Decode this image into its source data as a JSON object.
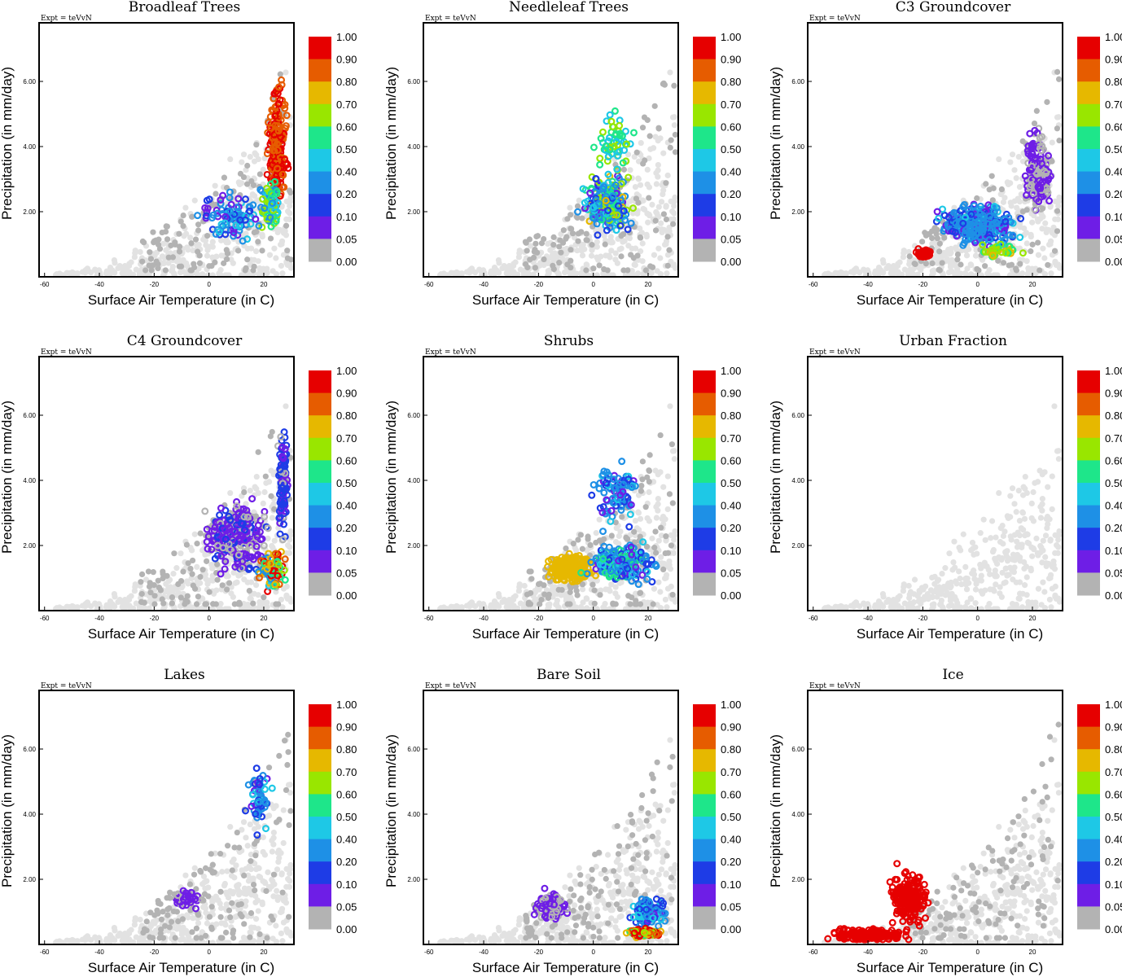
{
  "colors": {
    "background_points": "#e2e2e2",
    "zero_points": "#b3b3b3",
    "frame": "#000000"
  },
  "colorbar": {
    "labels": [
      "1.00",
      "0.90",
      "0.80",
      "0.70",
      "0.60",
      "0.50",
      "0.40",
      "0.20",
      "0.10",
      "0.05",
      "0.00"
    ],
    "colors": [
      "#e60000",
      "#e65c00",
      "#e6b800",
      "#99e600",
      "#1ee68a",
      "#1ec8e6",
      "#1e90e6",
      "#1e3ce6",
      "#6e1ee6",
      "#b3b3b3"
    ]
  },
  "chart_data": [
    {
      "type": "scatter",
      "title": "Broadleaf Trees",
      "annotation": "Expt = teVvN",
      "xlabel": "Surface Air Temperature (in C)",
      "ylabel": "Precipitation (in mm/day)",
      "xticks": [
        "-60",
        "-40",
        "-20",
        "0",
        "20"
      ],
      "yticks": [
        "2.00",
        "4.00",
        "6.00"
      ],
      "xlim": [
        -62,
        31
      ],
      "ylim": [
        0,
        7.8
      ],
      "color_scale": "fraction 0.00-1.00",
      "series": [
        {
          "center": [
            8,
            1.8
          ],
          "spread": [
            16,
            1.0
          ],
          "count": 90,
          "hue": [
            0.05,
            0.45
          ]
        },
        {
          "center": [
            25,
            4.0
          ],
          "spread": [
            5,
            2.6
          ],
          "count": 220,
          "hue": [
            0.8,
            1.0
          ]
        },
        {
          "center": [
            22,
            2.2
          ],
          "spread": [
            6,
            1.2
          ],
          "count": 70,
          "hue": [
            0.3,
            0.7
          ]
        }
      ]
    },
    {
      "type": "scatter",
      "title": "Needleleaf Trees",
      "annotation": "Expt = teVvN",
      "xlabel": "Surface Air Temperature (in C)",
      "ylabel": "Precipitation (in mm/day)",
      "xticks": [
        "-60",
        "-40",
        "-20",
        "0",
        "20"
      ],
      "yticks": [
        "2.00",
        "4.00",
        "6.00"
      ],
      "xlim": [
        -62,
        31
      ],
      "ylim": [
        0,
        7.8
      ],
      "color_scale": "fraction 0.00-1.00",
      "series": [
        {
          "center": [
            5,
            2.2
          ],
          "spread": [
            12,
            1.1
          ],
          "count": 300,
          "hue": [
            0.05,
            0.75
          ]
        },
        {
          "center": [
            8,
            4.0
          ],
          "spread": [
            9,
            1.5
          ],
          "count": 60,
          "hue": [
            0.4,
            0.7
          ]
        }
      ]
    },
    {
      "type": "scatter",
      "title": "C3 Groundcover",
      "annotation": "Expt = teVvN",
      "xlabel": "Surface Air Temperature (in C)",
      "ylabel": "Precipitation (in mm/day)",
      "xticks": [
        "-60",
        "-40",
        "-20",
        "0",
        "20"
      ],
      "yticks": [
        "2.00",
        "4.00",
        "6.00"
      ],
      "xlim": [
        -62,
        31
      ],
      "ylim": [
        0,
        7.8
      ],
      "color_scale": "fraction 0.00-1.00",
      "series": [
        {
          "center": [
            0,
            1.6
          ],
          "spread": [
            20,
            0.9
          ],
          "count": 350,
          "hue": [
            0.05,
            0.45
          ]
        },
        {
          "center": [
            22,
            3.2
          ],
          "spread": [
            7,
            1.8
          ],
          "count": 140,
          "hue": [
            0.03,
            0.08
          ]
        },
        {
          "center": [
            -20,
            0.7
          ],
          "spread": [
            5,
            0.25
          ],
          "count": 30,
          "hue": [
            0.95,
            1.0
          ]
        },
        {
          "center": [
            8,
            0.8
          ],
          "spread": [
            10,
            0.3
          ],
          "count": 40,
          "hue": [
            0.5,
            0.8
          ]
        }
      ]
    },
    {
      "type": "scatter",
      "title": "C4 Groundcover",
      "annotation": "Expt = teVvN",
      "xlabel": "Surface Air Temperature (in C)",
      "ylabel": "Precipitation (in mm/day)",
      "xticks": [
        "-60",
        "-40",
        "-20",
        "0",
        "20"
      ],
      "yticks": [
        "2.00",
        "4.00",
        "6.00"
      ],
      "xlim": [
        -62,
        31
      ],
      "ylim": [
        0,
        7.8
      ],
      "color_scale": "fraction 0.00-1.00",
      "series": [
        {
          "center": [
            10,
            2.3
          ],
          "spread": [
            16,
            1.4
          ],
          "count": 300,
          "hue": [
            0.03,
            0.12
          ]
        },
        {
          "center": [
            27,
            4.0
          ],
          "spread": [
            3,
            2.6
          ],
          "count": 120,
          "hue": [
            0.03,
            0.2
          ]
        },
        {
          "center": [
            23,
            1.3
          ],
          "spread": [
            7,
            0.8
          ],
          "count": 90,
          "hue": [
            0.3,
            1.0
          ]
        }
      ]
    },
    {
      "type": "scatter",
      "title": "Shrubs",
      "annotation": "Expt = teVvN",
      "xlabel": "Surface Air Temperature (in C)",
      "ylabel": "Precipitation (in mm/day)",
      "xticks": [
        "-60",
        "-40",
        "-20",
        "0",
        "20"
      ],
      "yticks": [
        "2.00",
        "4.00",
        "6.00"
      ],
      "xlim": [
        -62,
        31
      ],
      "ylim": [
        0,
        7.8
      ],
      "color_scale": "fraction 0.00-1.00",
      "series": [
        {
          "center": [
            -8,
            1.3
          ],
          "spread": [
            12,
            0.6
          ],
          "count": 260,
          "hue": [
            0.7,
            0.76
          ]
        },
        {
          "center": [
            10,
            1.5
          ],
          "spread": [
            16,
            0.8
          ],
          "count": 260,
          "hue": [
            0.05,
            0.6
          ]
        },
        {
          "center": [
            8,
            3.5
          ],
          "spread": [
            12,
            1.5
          ],
          "count": 90,
          "hue": [
            0.05,
            0.45
          ]
        }
      ]
    },
    {
      "type": "scatter",
      "title": "Urban Fraction",
      "annotation": "Expt = teVvN",
      "xlabel": "Surface Air Temperature (in C)",
      "ylabel": "Precipitation (in mm/day)",
      "xticks": [
        "-60",
        "-40",
        "-20",
        "0",
        "20"
      ],
      "yticks": [
        "2.00",
        "4.00",
        "6.00"
      ],
      "xlim": [
        -62,
        31
      ],
      "ylim": [
        0,
        7.8
      ],
      "color_scale": "fraction 0.00-1.00",
      "series": []
    },
    {
      "type": "scatter",
      "title": "Lakes",
      "annotation": "Expt = teVvN",
      "xlabel": "Surface Air Temperature (in C)",
      "ylabel": "Precipitation (in mm/day)",
      "xticks": [
        "-60",
        "-40",
        "-20",
        "0",
        "20"
      ],
      "yticks": [
        "2.00",
        "4.00",
        "6.00"
      ],
      "xlim": [
        -62,
        31
      ],
      "ylim": [
        0,
        7.8
      ],
      "color_scale": "fraction 0.00-1.00",
      "series": [
        {
          "center": [
            -8,
            1.4
          ],
          "spread": [
            8,
            0.4
          ],
          "count": 50,
          "hue": [
            0.03,
            0.08
          ]
        },
        {
          "center": [
            18,
            4.5
          ],
          "spread": [
            7,
            1.6
          ],
          "count": 60,
          "hue": [
            0.03,
            0.45
          ]
        }
      ]
    },
    {
      "type": "scatter",
      "title": "Bare Soil",
      "annotation": "Expt = teVvN",
      "xlabel": "Surface Air Temperature (in C)",
      "ylabel": "Precipitation (in mm/day)",
      "xticks": [
        "-60",
        "-40",
        "-20",
        "0",
        "20"
      ],
      "yticks": [
        "2.00",
        "4.00",
        "6.00"
      ],
      "xlim": [
        -62,
        31
      ],
      "ylim": [
        0,
        7.8
      ],
      "color_scale": "fraction 0.00-1.00",
      "series": [
        {
          "center": [
            -15,
            1.2
          ],
          "spread": [
            9,
            0.6
          ],
          "count": 140,
          "hue": [
            0.03,
            0.09
          ]
        },
        {
          "center": [
            20,
            1.0
          ],
          "spread": [
            9,
            0.6
          ],
          "count": 140,
          "hue": [
            0.05,
            0.5
          ]
        },
        {
          "center": [
            18,
            0.35
          ],
          "spread": [
            10,
            0.2
          ],
          "count": 100,
          "hue": [
            0.5,
            1.0
          ]
        }
      ]
    },
    {
      "type": "scatter",
      "title": "Ice",
      "annotation": "Expt = teVvN",
      "xlabel": "Surface Air Temperature (in C)",
      "ylabel": "Precipitation (in mm/day)",
      "xticks": [
        "-60",
        "-40",
        "-20",
        "0",
        "20"
      ],
      "yticks": [
        "2.00",
        "4.00",
        "6.00"
      ],
      "xlim": [
        -62,
        31
      ],
      "ylim": [
        0,
        7.8
      ],
      "color_scale": "fraction 0.00-1.00",
      "series": [
        {
          "center": [
            -40,
            0.3
          ],
          "spread": [
            20,
            0.3
          ],
          "count": 160,
          "hue": [
            0.97,
            1.0
          ]
        },
        {
          "center": [
            -25,
            1.4
          ],
          "spread": [
            10,
            1.2
          ],
          "count": 200,
          "hue": [
            0.97,
            1.0
          ]
        }
      ]
    }
  ]
}
